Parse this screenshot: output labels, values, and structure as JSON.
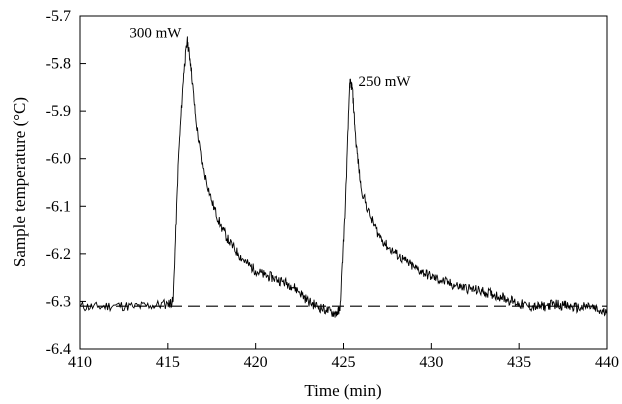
{
  "chart_data": {
    "type": "line",
    "xlabel": "Time (min)",
    "ylabel": "Sample temperature (°C)",
    "xlim": [
      410,
      440
    ],
    "ylim": [
      -6.4,
      -5.7
    ],
    "x_ticks": [
      410,
      415,
      420,
      425,
      430,
      435,
      440
    ],
    "x_tick_labels": [
      "410",
      "415",
      "420",
      "425",
      "430",
      "435",
      "440"
    ],
    "y_ticks": [
      -5.7,
      -5.8,
      -5.9,
      -6.0,
      -6.1,
      -6.2,
      -6.3,
      -6.4
    ],
    "y_tick_labels": [
      "-5.7",
      "-5.8",
      "-5.9",
      "-6.0",
      "-6.1",
      "-6.2",
      "-6.3",
      "-6.4"
    ],
    "grid": false,
    "baseline": {
      "y": -6.31,
      "style": "dashed"
    },
    "annotations": [
      {
        "text": "300 mW",
        "x": 416.0,
        "y": -5.745
      },
      {
        "text": "250 mW",
        "x": 425.4,
        "y": -5.83
      }
    ],
    "series": [
      {
        "x": [
          410.0,
          411.0,
          412.0,
          413.0,
          414.0,
          415.0,
          415.3,
          415.6,
          415.9,
          416.1,
          416.3,
          416.6,
          417.0,
          417.5,
          418.0,
          418.5,
          419.0,
          419.5,
          420.0,
          420.5,
          421.0,
          421.5,
          422.0,
          422.5,
          423.0,
          423.5,
          424.0,
          424.5,
          424.8,
          425.1,
          425.35,
          425.5,
          425.7,
          426.0,
          426.5,
          427.0,
          427.5,
          428.0,
          428.5,
          429.0,
          429.5,
          430.0,
          430.5,
          431.0,
          431.5,
          432.0,
          432.5,
          433.0,
          433.5,
          434.0,
          434.5,
          435.0,
          435.5,
          436.0,
          436.5,
          437.0,
          437.5,
          438.0,
          438.5,
          439.0,
          439.5,
          440.0
        ],
        "y": [
          -6.31,
          -6.312,
          -6.308,
          -6.311,
          -6.309,
          -6.305,
          -6.3,
          -6.0,
          -5.82,
          -5.75,
          -5.8,
          -5.92,
          -6.02,
          -6.09,
          -6.14,
          -6.175,
          -6.2,
          -6.22,
          -6.235,
          -6.245,
          -6.25,
          -6.258,
          -6.265,
          -6.28,
          -6.3,
          -6.31,
          -6.318,
          -6.325,
          -6.32,
          -6.1,
          -5.84,
          -5.85,
          -5.96,
          -6.06,
          -6.12,
          -6.16,
          -6.185,
          -6.2,
          -6.215,
          -6.228,
          -6.238,
          -6.248,
          -6.255,
          -6.262,
          -6.268,
          -6.272,
          -6.276,
          -6.28,
          -6.285,
          -6.29,
          -6.298,
          -6.305,
          -6.31,
          -6.312,
          -6.31,
          -6.305,
          -6.308,
          -6.312,
          -6.314,
          -6.31,
          -6.32,
          -6.325
        ]
      }
    ]
  }
}
